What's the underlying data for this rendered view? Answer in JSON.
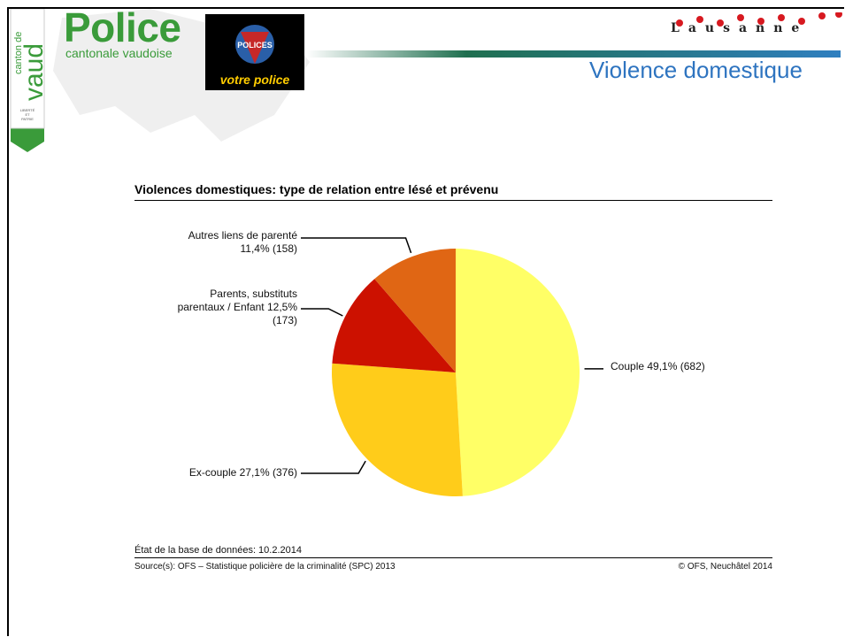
{
  "header": {
    "logo_word": "Police",
    "logo_sub": "cantonale vaudoise",
    "shield_top": "canton de",
    "shield_big": "vaud",
    "shield_motto_1": "LIBERTÉ",
    "shield_motto_2": "ET",
    "shield_motto_3": "PATRIE",
    "badge_top": "POLICES",
    "badge_bottom": "votre police",
    "city_letters": "Lausanne",
    "section_title": "Violence domestique",
    "colors": {
      "green": "#3a9b3a",
      "blue": "#2e74c0",
      "badge_yellow": "#ffcc00"
    }
  },
  "chart_data": {
    "type": "pie",
    "title": "Violences domestiques: type de relation entre lésé et prévenu",
    "slices": [
      {
        "label": "Couple 49,1% (682)",
        "value": 682,
        "percent": 49.1,
        "color": "#ffff66"
      },
      {
        "label": "Ex-couple 27,1% (376)",
        "value": 376,
        "percent": 27.1,
        "color": "#ffcc1a"
      },
      {
        "label": "Parents, substituts parentaux / Enfant 12,5% (173)",
        "label_lines": [
          "Parents, substituts",
          "parentaux / Enfant 12,5%",
          "(173)"
        ],
        "value": 173,
        "percent": 12.5,
        "color": "#cc1100"
      },
      {
        "label": "Autres liens de parenté 11,4% (158)",
        "label_lines": [
          "Autres liens de parenté",
          "11,4% (158)"
        ],
        "value": 158,
        "percent": 11.4,
        "color": "#e06614"
      }
    ],
    "start": "12 o'clock",
    "direction": "clockwise"
  },
  "footer": {
    "db_state": "État de la base de données: 10.2.2014",
    "source": "Source(s): OFS – Statistique policière de la criminalité (SPC) 2013",
    "copyright": "© OFS, Neuchâtel 2014"
  }
}
